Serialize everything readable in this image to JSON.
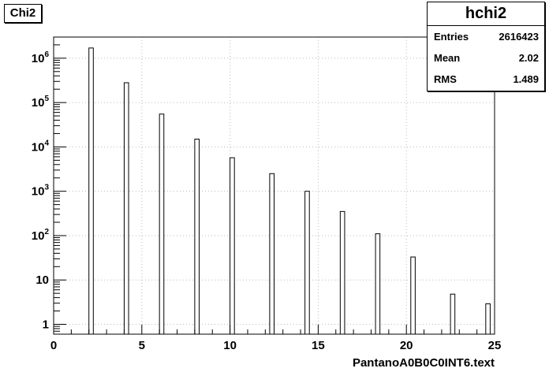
{
  "title": "Chi2",
  "stats": {
    "name": "hchi2",
    "rows": [
      {
        "key": "Entries",
        "value": "2616423"
      },
      {
        "key": "Mean",
        "value": "2.02"
      },
      {
        "key": "RMS",
        "value": "1.489"
      }
    ]
  },
  "chart_data": {
    "type": "bar",
    "xlabel": "PantanoA0B0C0INT6.text",
    "ylabel": "",
    "xlim": [
      0,
      25
    ],
    "ylog": true,
    "ylim": [
      0.6,
      3000000
    ],
    "grid": true,
    "x_ticks": [
      "0",
      "5",
      "10",
      "15",
      "20",
      "25"
    ],
    "y_ticks": [
      {
        "value": 1,
        "label": "1"
      },
      {
        "value": 10,
        "label": "10"
      },
      {
        "value": 100,
        "base": "10",
        "exp": "2"
      },
      {
        "value": 1000,
        "base": "10",
        "exp": "3"
      },
      {
        "value": 10000,
        "base": "10",
        "exp": "4"
      },
      {
        "value": 100000,
        "base": "10",
        "exp": "5"
      },
      {
        "value": 1000000,
        "base": "10",
        "exp": "6"
      }
    ],
    "bin_width": 0.25,
    "bins": [
      {
        "x": 2.0,
        "count": 1700000
      },
      {
        "x": 4.0,
        "count": 280000
      },
      {
        "x": 6.0,
        "count": 55000
      },
      {
        "x": 8.0,
        "count": 15000
      },
      {
        "x": 10.0,
        "count": 5700
      },
      {
        "x": 12.25,
        "count": 2500
      },
      {
        "x": 14.25,
        "count": 1000
      },
      {
        "x": 16.25,
        "count": 350
      },
      {
        "x": 18.25,
        "count": 110
      },
      {
        "x": 20.25,
        "count": 33
      },
      {
        "x": 22.5,
        "count": 4.8
      },
      {
        "x": 24.5,
        "count": 2.9
      }
    ]
  }
}
